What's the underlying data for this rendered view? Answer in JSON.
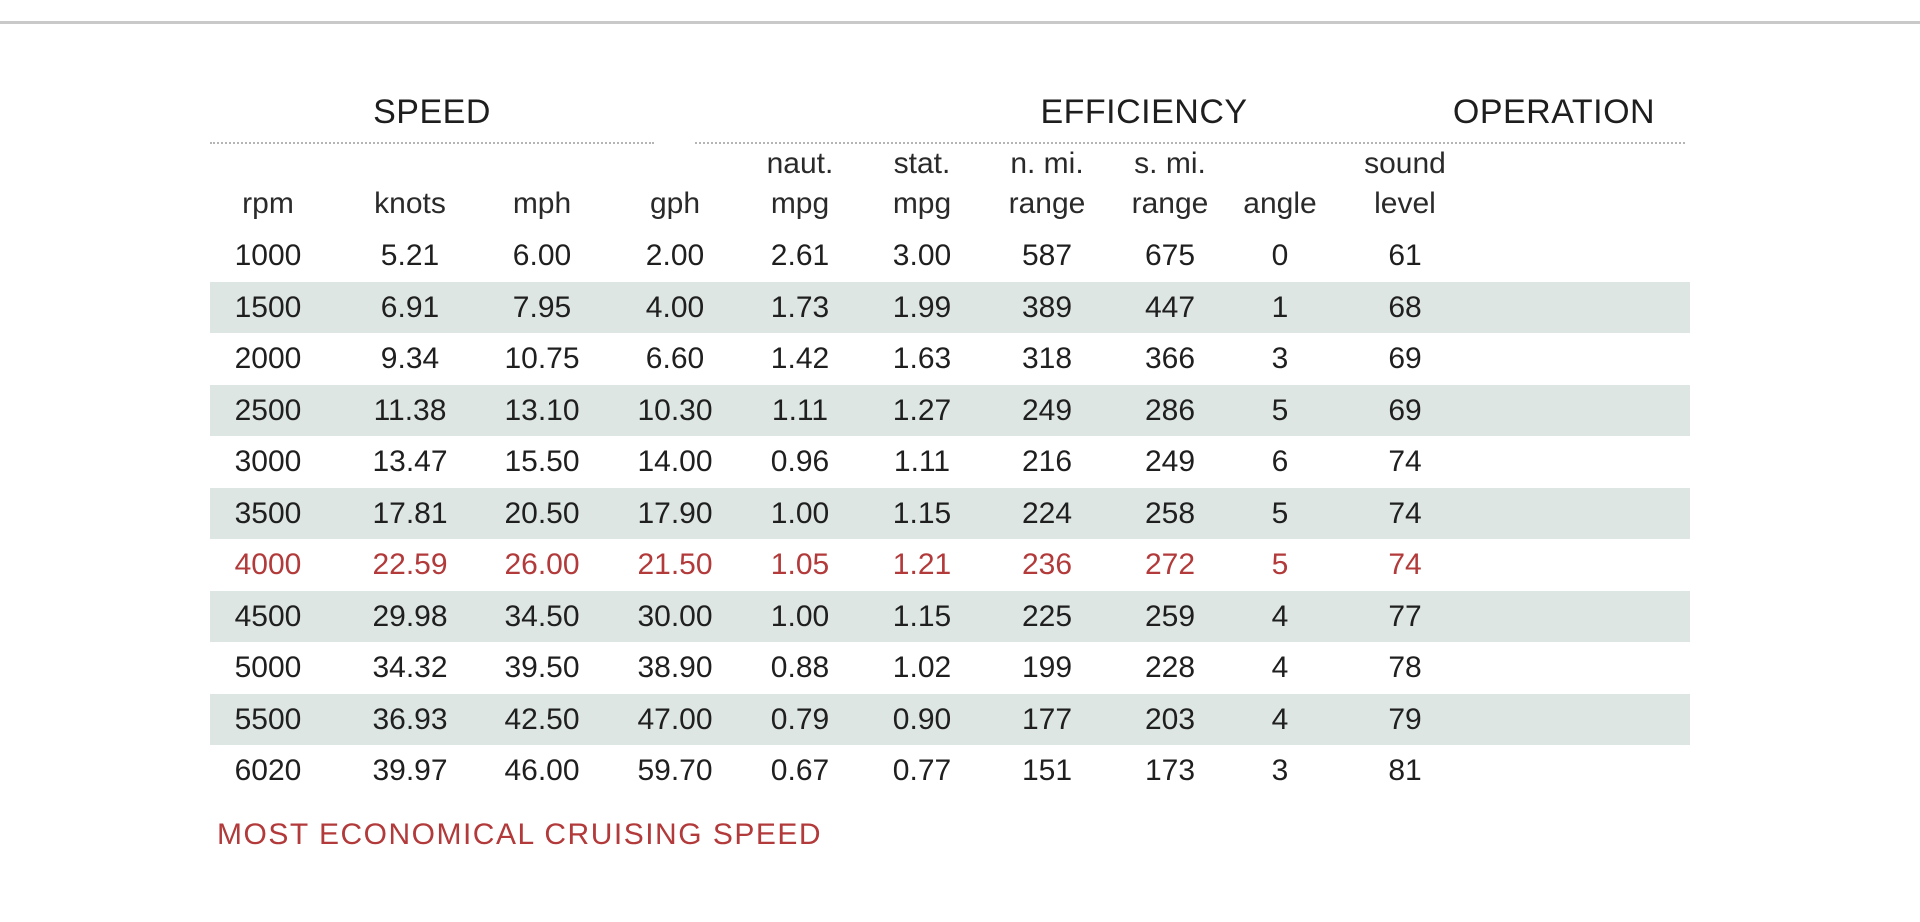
{
  "groups": {
    "speed": "SPEED",
    "efficiency": "EFFICIENCY",
    "operation": "OPERATION"
  },
  "columns": [
    {
      "key": "rpm",
      "line1": "",
      "line2": "rpm"
    },
    {
      "key": "knots",
      "line1": "",
      "line2": "knots"
    },
    {
      "key": "mph",
      "line1": "",
      "line2": "mph"
    },
    {
      "key": "gph",
      "line1": "",
      "line2": "gph"
    },
    {
      "key": "naut_mpg",
      "line1": "naut.",
      "line2": "mpg"
    },
    {
      "key": "stat_mpg",
      "line1": "stat.",
      "line2": "mpg"
    },
    {
      "key": "n_mi_range",
      "line1": "n. mi.",
      "line2": "range"
    },
    {
      "key": "s_mi_range",
      "line1": "s. mi.",
      "line2": "range"
    },
    {
      "key": "angle",
      "line1": "",
      "line2": "angle"
    },
    {
      "key": "sound_level",
      "line1": "sound",
      "line2": "level"
    }
  ],
  "rows": [
    [
      "1000",
      "5.21",
      "6.00",
      "2.00",
      "2.61",
      "3.00",
      "587",
      "675",
      "0",
      "61"
    ],
    [
      "1500",
      "6.91",
      "7.95",
      "4.00",
      "1.73",
      "1.99",
      "389",
      "447",
      "1",
      "68"
    ],
    [
      "2000",
      "9.34",
      "10.75",
      "6.60",
      "1.42",
      "1.63",
      "318",
      "366",
      "3",
      "69"
    ],
    [
      "2500",
      "11.38",
      "13.10",
      "10.30",
      "1.11",
      "1.27",
      "249",
      "286",
      "5",
      "69"
    ],
    [
      "3000",
      "13.47",
      "15.50",
      "14.00",
      "0.96",
      "1.11",
      "216",
      "249",
      "6",
      "74"
    ],
    [
      "3500",
      "17.81",
      "20.50",
      "17.90",
      "1.00",
      "1.15",
      "224",
      "258",
      "5",
      "74"
    ],
    [
      "4000",
      "22.59",
      "26.00",
      "21.50",
      "1.05",
      "1.21",
      "236",
      "272",
      "5",
      "74"
    ],
    [
      "4500",
      "29.98",
      "34.50",
      "30.00",
      "1.00",
      "1.15",
      "225",
      "259",
      "4",
      "77"
    ],
    [
      "5000",
      "34.32",
      "39.50",
      "38.90",
      "0.88",
      "1.02",
      "199",
      "228",
      "4",
      "78"
    ],
    [
      "5500",
      "36.93",
      "42.50",
      "47.00",
      "0.79",
      "0.90",
      "177",
      "203",
      "4",
      "79"
    ],
    [
      "6020",
      "39.97",
      "46.00",
      "59.70",
      "0.67",
      "0.77",
      "151",
      "173",
      "3",
      "81"
    ]
  ],
  "highlight_row": 6,
  "footnote": "MOST ECONOMICAL CRUISING SPEED",
  "colors": {
    "highlight": "#b23a3a",
    "shaded_row": "#dde6e2",
    "rule": "#c9c9c9"
  }
}
